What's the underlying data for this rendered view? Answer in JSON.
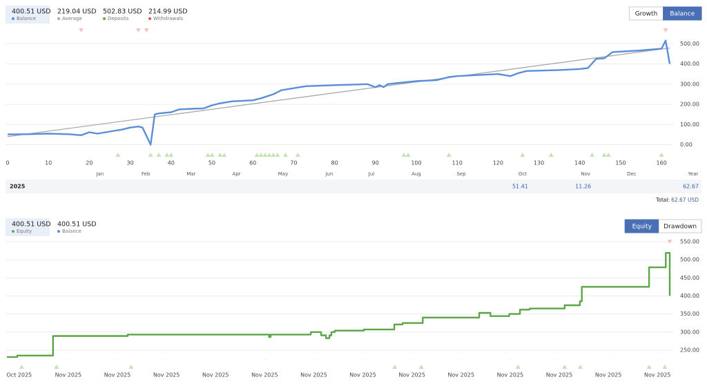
{
  "summary_top": [
    {
      "value": "400.51 USD",
      "label": "Balance",
      "color": "#5b8ed8"
    },
    {
      "value": "219.04 USD",
      "label": "Average",
      "color": "#aaaaaa"
    },
    {
      "value": "502.83 USD",
      "label": "Deposits",
      "color": "#6aa84f"
    },
    {
      "value": "214.99 USD",
      "label": "Withdrawals",
      "color": "#d9534f"
    }
  ],
  "buttons_top": [
    "Growth",
    "Balance"
  ],
  "active_top": 1,
  "year_table": {
    "year": "2025",
    "cells": [
      null,
      null,
      null,
      null,
      null,
      null,
      null,
      null,
      null,
      "51.41",
      "11.26",
      null
    ],
    "year_total": "62.67"
  },
  "total_label": "Total:",
  "total_value": "62.67 USD",
  "summary_bottom": [
    {
      "value": "400.51 USD",
      "label": "Equity",
      "color": "#6aa84f"
    },
    {
      "value": "400.51 USD",
      "label": "Balance",
      "color": "#5b8ed8"
    }
  ],
  "buttons_bottom": [
    "Equity",
    "Drawdown"
  ],
  "active_bottom": 0,
  "chart_data": [
    {
      "type": "line",
      "grid": true,
      "x": [
        0,
        5,
        10,
        15,
        18,
        20,
        22,
        25,
        28,
        30,
        32,
        33,
        35,
        36,
        37,
        40,
        42,
        45,
        48,
        50,
        52,
        55,
        58,
        60,
        62,
        65,
        67,
        70,
        73,
        80,
        85,
        88,
        90,
        91,
        92,
        93,
        95,
        100,
        105,
        108,
        110,
        115,
        120,
        123,
        125,
        127,
        135,
        140,
        142,
        144,
        146,
        148,
        155,
        160,
        161,
        162
      ],
      "series": [
        {
          "color": "#5b8ed8",
          "values": [
            51,
            52,
            55,
            52,
            47,
            62,
            55,
            65,
            75,
            85,
            90,
            85,
            0,
            150,
            155,
            161,
            175,
            178,
            180,
            195,
            205,
            215,
            218,
            220,
            230,
            250,
            270,
            280,
            290,
            295,
            298,
            300,
            285,
            295,
            285,
            300,
            305,
            315,
            320,
            335,
            340,
            345,
            350,
            340,
            355,
            365,
            370,
            375,
            380,
            425,
            428,
            459,
            467,
            476,
            516,
            400.51
          ]
        },
        {
          "color": "#aaaaaa",
          "x": [
            0,
            162
          ],
          "values": [
            40,
            479
          ]
        }
      ],
      "xlim": [
        0,
        162
      ],
      "ylim": [
        -70,
        580
      ],
      "xticks": [
        0,
        10,
        20,
        30,
        40,
        50,
        60,
        70,
        80,
        90,
        100,
        110,
        120,
        130,
        140,
        150,
        160
      ],
      "yticks": [
        {
          "value": 0,
          "label": "0.00"
        },
        {
          "value": 100,
          "label": "100.00"
        },
        {
          "value": 200,
          "label": "200.00"
        },
        {
          "value": 300,
          "label": "300.00"
        },
        {
          "value": 400,
          "label": "400.00"
        },
        {
          "value": 500,
          "label": "500.00"
        }
      ],
      "x2ticks": [
        {
          "value": 22.6,
          "label": "Jan"
        },
        {
          "value": 33.8,
          "label": "Feb"
        },
        {
          "value": 44.9,
          "label": "Mar"
        },
        {
          "value": 56,
          "label": "Apr"
        },
        {
          "value": 67.4,
          "label": "May"
        },
        {
          "value": 78.7,
          "label": "Jun"
        },
        {
          "value": 89,
          "label": "Jul"
        },
        {
          "value": 100,
          "label": "Aug"
        },
        {
          "value": 111,
          "label": "Sep"
        },
        {
          "value": 126,
          "label": "Oct"
        },
        {
          "value": 141.4,
          "label": "Nov"
        },
        {
          "value": 152.7,
          "label": "Dec"
        }
      ],
      "x2_end_label": "Year",
      "deposit_marks": [
        27,
        35,
        37,
        39,
        40,
        49,
        50,
        52,
        53,
        61,
        62,
        63,
        64,
        65,
        66,
        68,
        71,
        97,
        98,
        108,
        126,
        133,
        143,
        146,
        147,
        160
      ],
      "withdrawal_marks": [
        18,
        32,
        34,
        161
      ],
      "deposit_color": "#c5e3b5",
      "withdrawal_color": "#f3c4c4"
    },
    {
      "type": "line",
      "grid": true,
      "x": [
        -0.25,
        -0.04,
        -0.04,
        0.69,
        0.69,
        2.21,
        2.21,
        5.09,
        5.09,
        5.12,
        5.12,
        5.94,
        5.94,
        6.15,
        6.15,
        6.25,
        6.25,
        6.32,
        6.32,
        6.36,
        6.36,
        6.43,
        6.43,
        7.02,
        7.02,
        7.64,
        7.64,
        7.81,
        7.81,
        8.22,
        8.22,
        9.37,
        9.37,
        9.6,
        9.6,
        9.98,
        9.98,
        10.2,
        10.2,
        10.4,
        10.4,
        11.11,
        11.11,
        11.42,
        11.42,
        11.46,
        11.46,
        12.83,
        12.83,
        13.17,
        13.17,
        13.25,
        13.25
      ],
      "series": [
        {
          "color": "#5aa545",
          "values": [
            231,
            231,
            235,
            235,
            289,
            289,
            293,
            293,
            286,
            286,
            293,
            293,
            300,
            300,
            291,
            291,
            283,
            283,
            291,
            291,
            300,
            300,
            304,
            304,
            307,
            307,
            321,
            321,
            325,
            325,
            340,
            340,
            353,
            353,
            344,
            344,
            350,
            350,
            362,
            362,
            365,
            365,
            374,
            374,
            385,
            385,
            425,
            425,
            479,
            479,
            519,
            519,
            400.51
          ]
        }
      ],
      "xlim": [
        -0.25,
        13.25
      ],
      "ylim": [
        225,
        569
      ],
      "xticks": [
        {
          "value": 0,
          "label": "Oct 2025"
        },
        {
          "value": 1,
          "label": "Nov 2025"
        },
        {
          "value": 2,
          "label": "Nov 2025"
        },
        {
          "value": 3,
          "label": "Nov 2025"
        },
        {
          "value": 4,
          "label": "Nov 2025"
        },
        {
          "value": 5,
          "label": "Nov 2025"
        },
        {
          "value": 6,
          "label": "Nov 2025"
        },
        {
          "value": 7,
          "label": "Nov 2025"
        },
        {
          "value": 8,
          "label": "Nov 2025"
        },
        {
          "value": 9,
          "label": "Nov 2025"
        },
        {
          "value": 10,
          "label": "Nov 2025"
        },
        {
          "value": 11,
          "label": "Nov 2025"
        },
        {
          "value": 12,
          "label": "Nov 2025"
        },
        {
          "value": 13,
          "label": "Nov 2025"
        }
      ],
      "yticks": [
        {
          "value": 250,
          "label": "250.00"
        },
        {
          "value": 300,
          "label": "300.00"
        },
        {
          "value": 350,
          "label": "350.00"
        },
        {
          "value": 400,
          "label": "400.00"
        },
        {
          "value": 450,
          "label": "450.00"
        },
        {
          "value": 500,
          "label": "500.00"
        },
        {
          "value": 550,
          "label": "550.00"
        }
      ],
      "deposit_marks": [
        0.05,
        0.76,
        2.28,
        7.65,
        8.19,
        10.16,
        11.11,
        11.43,
        12.83,
        13.15
      ],
      "withdrawal_marks": [
        13.25
      ],
      "deposit_color": "#c5e3b5",
      "withdrawal_color": "#f3c4c4"
    }
  ]
}
